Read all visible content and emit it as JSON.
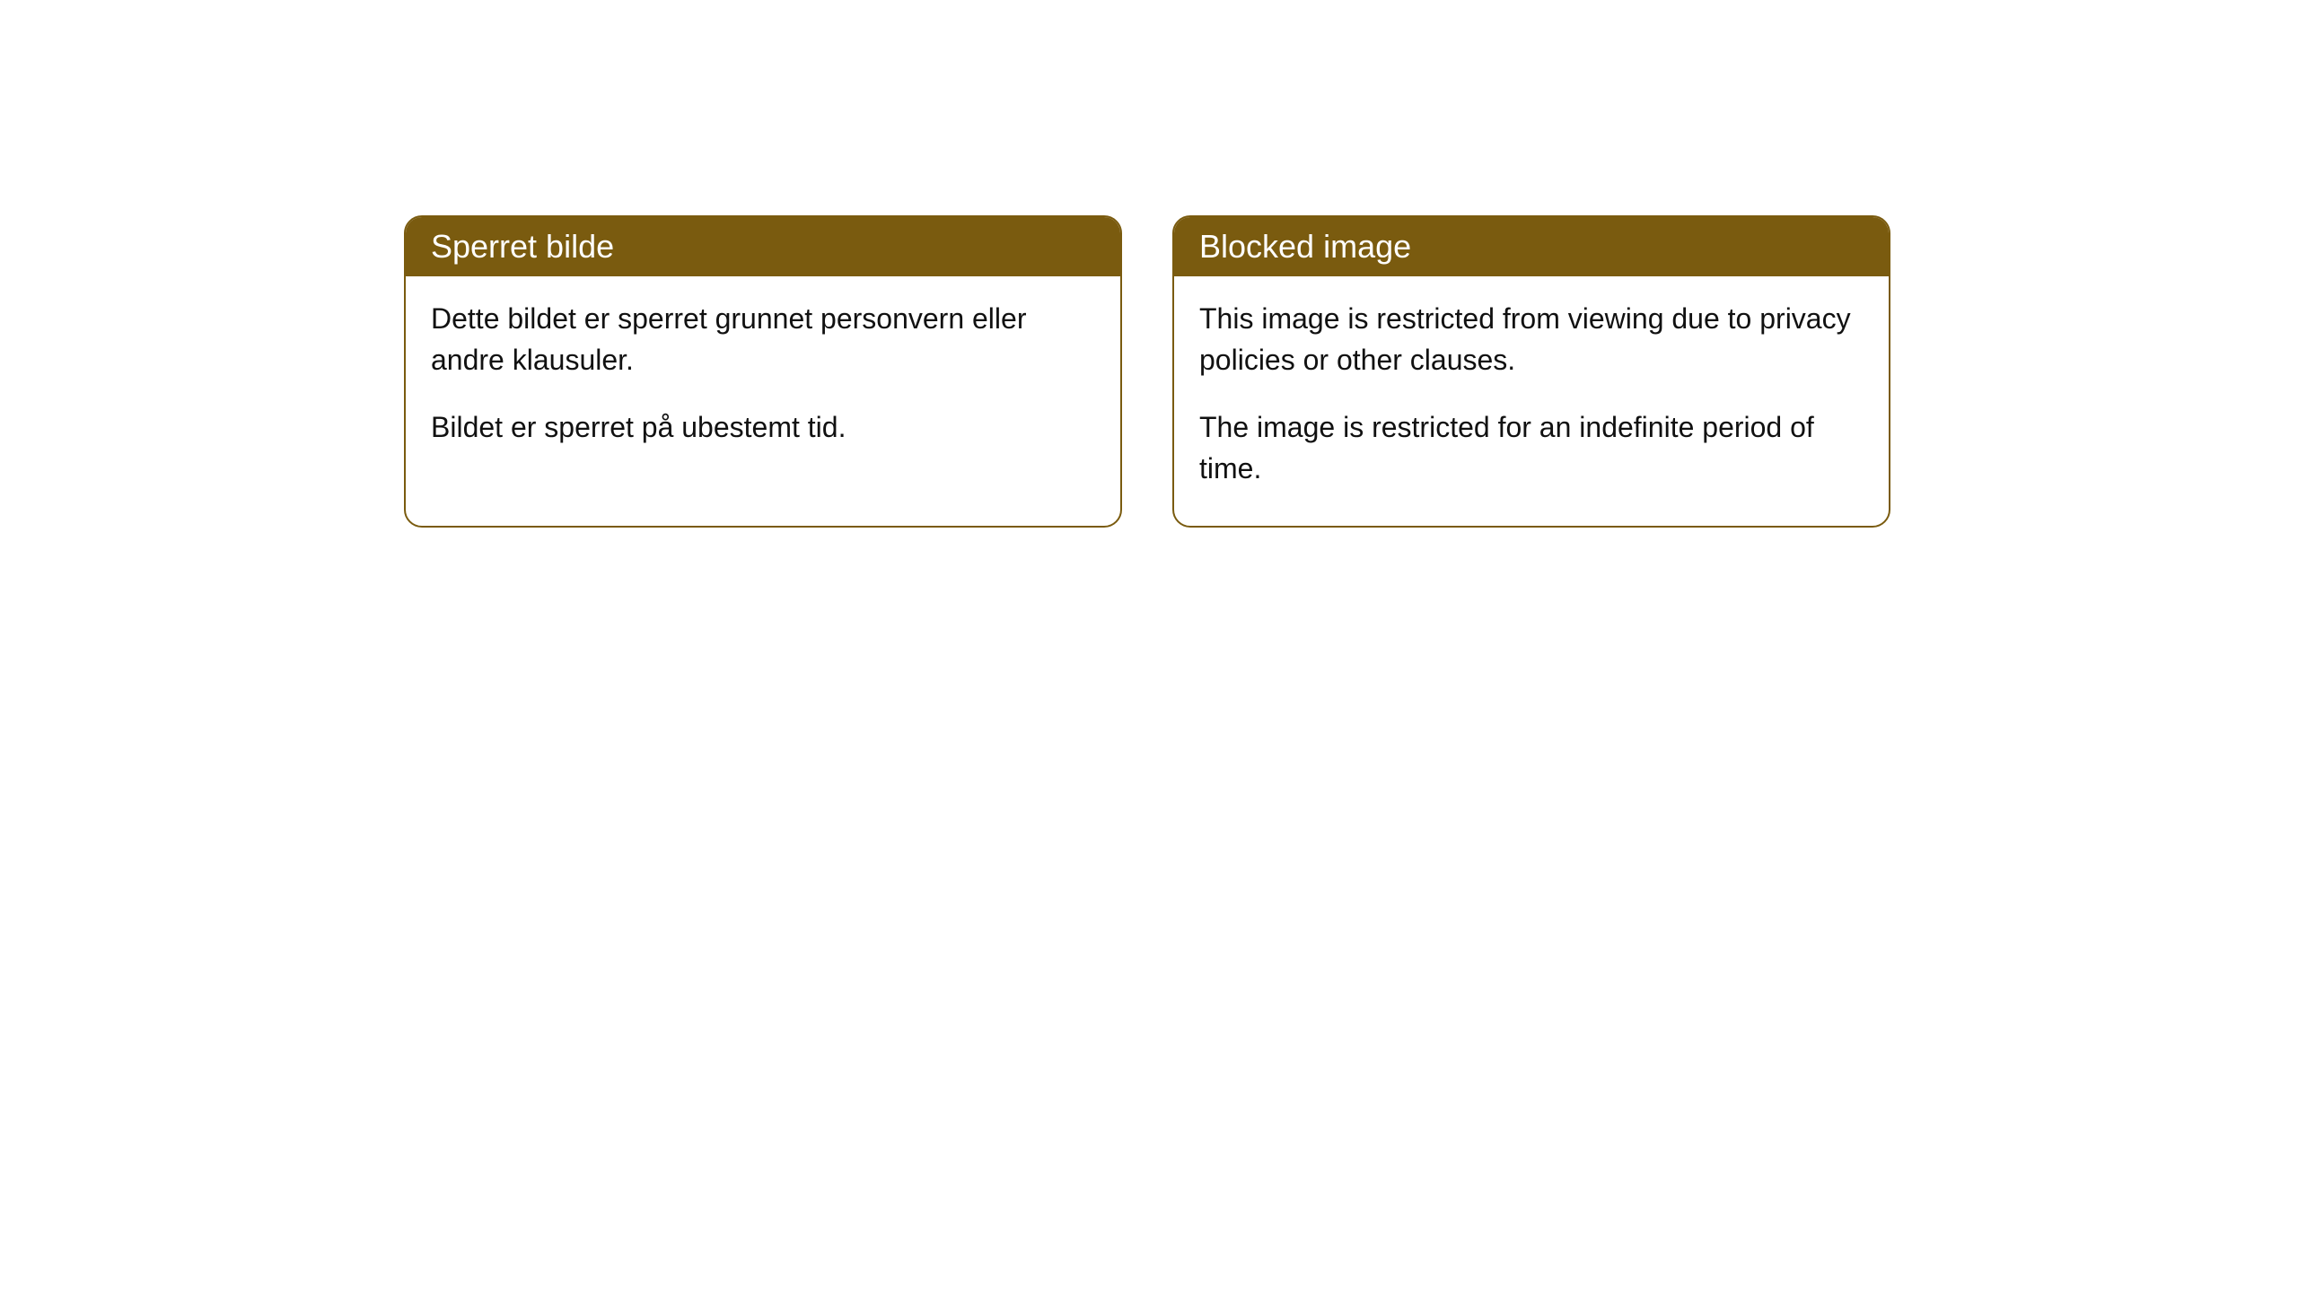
{
  "cards": [
    {
      "title": "Sperret bilde",
      "para1": "Dette bildet er sperret grunnet personvern eller andre klausuler.",
      "para2": "Bildet er sperret på ubestemt tid."
    },
    {
      "title": "Blocked image",
      "para1": "This image is restricted from viewing due to privacy policies or other clauses.",
      "para2": "The image is restricted for an indefinite period of time."
    }
  ],
  "style": {
    "headerBackground": "#7a5b0f",
    "headerTextColor": "#ffffff",
    "borderColor": "#7a5b0f",
    "bodyBackground": "#ffffff",
    "bodyTextColor": "#111111",
    "borderRadius": "20px",
    "cardWidth": 800,
    "cardGap": 56,
    "headerFontSize": 36,
    "bodyFontSize": 32
  }
}
